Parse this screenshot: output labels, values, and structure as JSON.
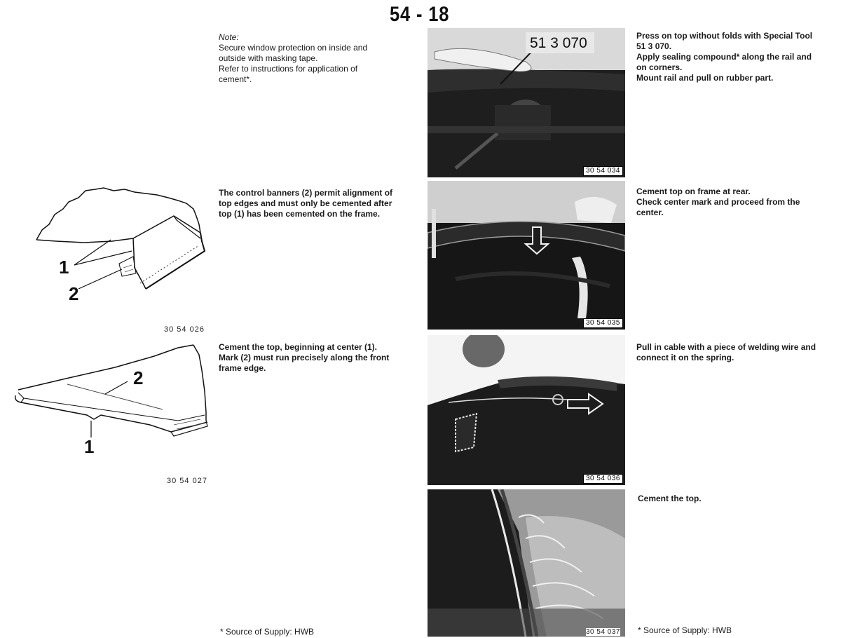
{
  "page": {
    "number": "54 - 18"
  },
  "left_column": {
    "note": {
      "label": "Note:",
      "lines": [
        "Secure window protection on inside and",
        "outside with masking tape.",
        "Refer to instructions for application of",
        "cement*."
      ]
    },
    "banners": {
      "lines": [
        "The control banners (2) permit alignment of",
        "top edges and must only be cemented after",
        "top (1) has been cemented on the frame."
      ],
      "figure_code": "30 54 026",
      "callouts": [
        "1",
        "2"
      ]
    },
    "cement_center": {
      "lines": [
        "Cement the top, beginning at center (1).",
        "Mark (2) must run precisely along the front",
        "frame edge."
      ],
      "figure_code": "30 54 027",
      "callouts": [
        "2",
        "1"
      ]
    },
    "footnote": "* Source of Supply: HWB"
  },
  "right_column": {
    "step1": {
      "lines": [
        "Press on top without folds with Special Tool",
        "51 3 070.",
        "Apply sealing compound* along the rail and",
        "on corners.",
        "Mount rail and pull on rubber part."
      ],
      "photo_code": "30 54 034",
      "tool_label": "51 3 070"
    },
    "step2": {
      "lines": [
        "Cement top on frame at rear.",
        "Check center mark and proceed from the",
        "center."
      ],
      "photo_code": "30 54 035"
    },
    "step3": {
      "lines": [
        "Pull in cable with a piece of welding wire and",
        "connect it on the spring."
      ],
      "photo_code": "30 54 036"
    },
    "step4": {
      "lines": [
        "Cement the top."
      ],
      "photo_code": "30 54 037"
    },
    "footnote": "* Source of Supply: HWB"
  }
}
